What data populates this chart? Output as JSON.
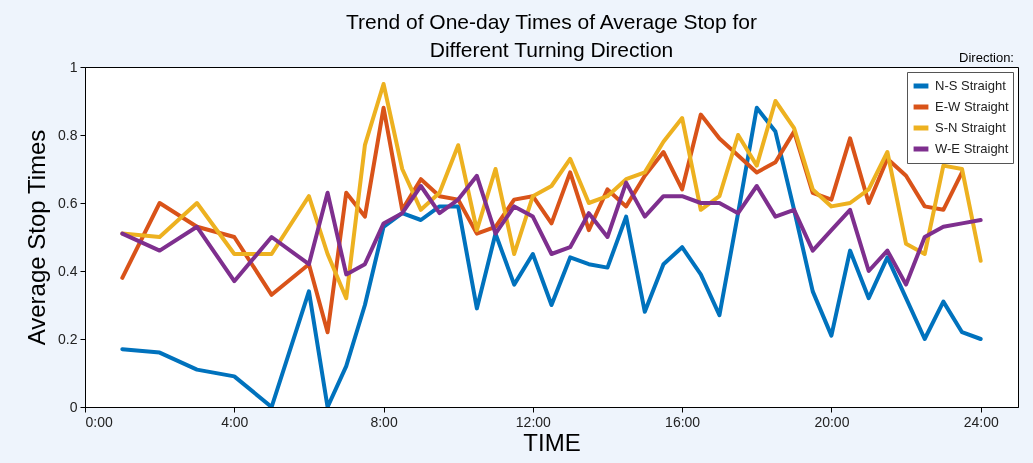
{
  "chart_data": {
    "type": "line",
    "title": "Trend of One-day Times of Average Stop for Different Turning Direction",
    "xlabel": "TIME",
    "ylabel": "Average Stop Times",
    "legend_title": "Direction:",
    "x": [
      1,
      2,
      3,
      4,
      5,
      6,
      6.5,
      7,
      7.5,
      8,
      8.5,
      9,
      9.5,
      10,
      10.5,
      11,
      11.5,
      12,
      12.5,
      13,
      13.5,
      14,
      14.5,
      15,
      15.5,
      16,
      16.5,
      17,
      17.5,
      18,
      18.5,
      19,
      19.5,
      20,
      20.5,
      21,
      21.5,
      22,
      22.5,
      23,
      23.5,
      24
    ],
    "series": [
      {
        "name": "N-S Straight",
        "color": "#0072bd",
        "values": [
          0.17,
          0.16,
          0.11,
          0.09,
          0,
          0.34,
          0,
          0.12,
          0.3,
          0.53,
          0.57,
          0.55,
          0.59,
          0.59,
          0.29,
          0.51,
          0.36,
          0.45,
          0.3,
          0.44,
          0.42,
          0.41,
          0.56,
          0.28,
          0.42,
          0.47,
          0.39,
          0.27,
          0.57,
          0.88,
          0.81,
          0.58,
          0.34,
          0.21,
          0.46,
          0.32,
          0.44,
          0.32,
          0.2,
          0.31,
          0.22,
          0.2
        ]
      },
      {
        "name": "E-W Straight",
        "color": "#d95319",
        "values": [
          0.38,
          0.6,
          0.53,
          0.5,
          0.33,
          0.42,
          0.22,
          0.63,
          0.56,
          0.88,
          0.58,
          0.67,
          0.62,
          0.61,
          0.51,
          0.53,
          0.61,
          0.62,
          0.54,
          0.69,
          0.52,
          0.64,
          0.59,
          0.68,
          0.75,
          0.64,
          0.86,
          0.79,
          0.74,
          0.69,
          0.72,
          0.81,
          0.63,
          0.61,
          0.79,
          0.6,
          0.73,
          0.68,
          0.59,
          0.58,
          0.69,
          null
        ]
      },
      {
        "name": "S-N Straight",
        "color": "#edb120",
        "values": [
          0.51,
          0.5,
          0.6,
          0.45,
          0.45,
          0.62,
          0.45,
          0.32,
          0.77,
          0.95,
          0.7,
          0.58,
          0.63,
          0.77,
          0.52,
          0.7,
          0.45,
          0.62,
          0.65,
          0.73,
          0.6,
          0.62,
          0.67,
          0.69,
          0.78,
          0.85,
          0.58,
          0.62,
          0.8,
          0.71,
          0.9,
          0.82,
          0.64,
          0.59,
          0.6,
          0.64,
          0.75,
          0.48,
          0.45,
          0.71,
          0.7,
          0.43
        ]
      },
      {
        "name": "W-E Straight",
        "color": "#7e2f8e",
        "values": [
          0.51,
          0.46,
          0.53,
          0.37,
          0.5,
          0.42,
          0.63,
          0.39,
          0.42,
          0.54,
          0.57,
          0.65,
          0.57,
          0.61,
          0.68,
          0.51,
          0.59,
          0.56,
          0.45,
          0.47,
          0.57,
          0.5,
          0.66,
          0.56,
          0.62,
          0.62,
          0.6,
          0.6,
          0.57,
          0.65,
          0.56,
          0.58,
          0.46,
          0.52,
          0.58,
          0.4,
          0.46,
          0.36,
          0.5,
          0.53,
          0.54,
          0.55
        ]
      }
    ],
    "xlim": [
      0,
      25
    ],
    "xticks": [
      {
        "value": 0,
        "label": "0:00"
      },
      {
        "value": 4,
        "label": "4:00"
      },
      {
        "value": 8,
        "label": "8:00"
      },
      {
        "value": 12,
        "label": "12:00"
      },
      {
        "value": 16,
        "label": "16:00"
      },
      {
        "value": 20,
        "label": "20:00"
      },
      {
        "value": 24,
        "label": "24:00"
      }
    ],
    "ylim": [
      0,
      1
    ],
    "yticks": [
      0,
      0.2,
      0.4,
      0.6,
      0.8,
      1
    ],
    "grid": false,
    "legend": "top right",
    "line_style": "solid"
  }
}
